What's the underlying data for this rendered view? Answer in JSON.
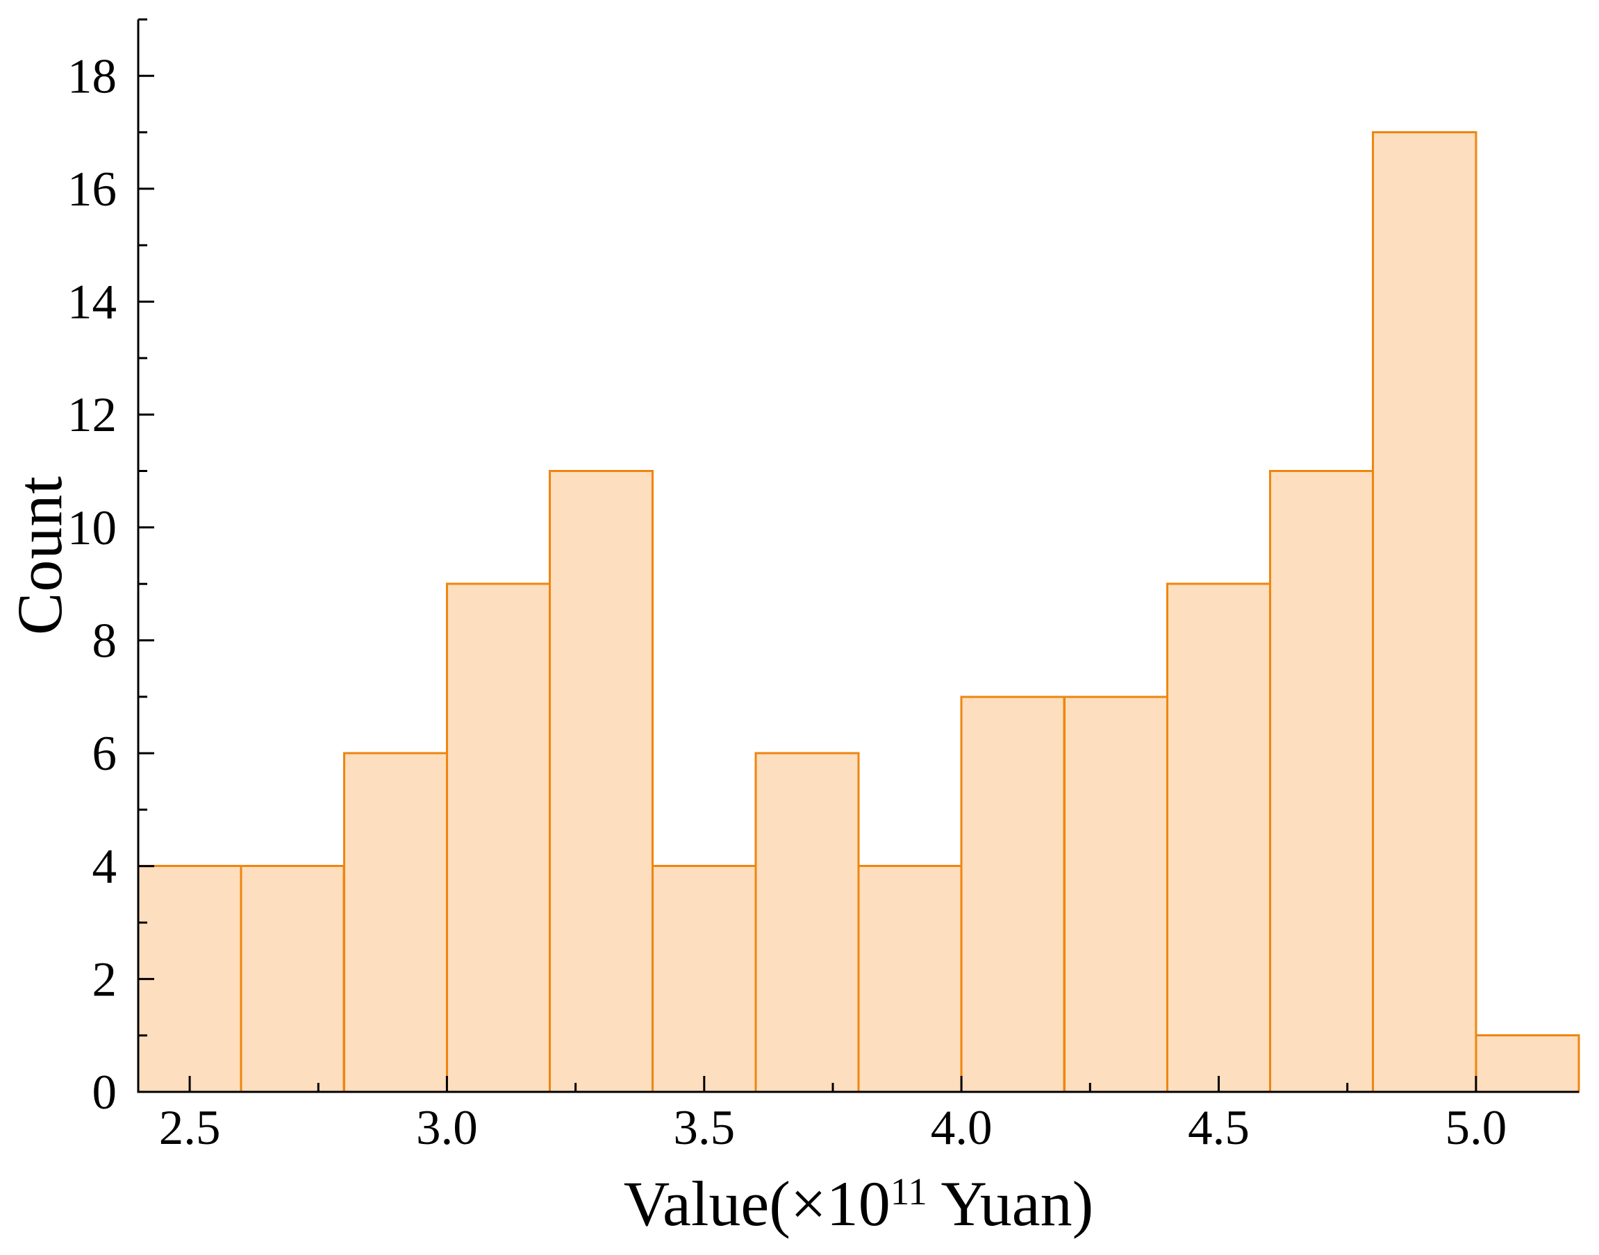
{
  "page": {
    "background": "#ffffff"
  },
  "chart_data": {
    "type": "bar",
    "subtype": "histogram",
    "title": "",
    "ylabel": "Count",
    "xlabel": {
      "prefix": "Value(×10",
      "superscript": "11",
      "suffix": " Yuan)"
    },
    "bin_edges": [
      2.4,
      2.6,
      2.8,
      3.0,
      3.2,
      3.4,
      3.6,
      3.8,
      4.0,
      4.2,
      4.4,
      4.6,
      4.8,
      5.0,
      5.2
    ],
    "counts": [
      4,
      4,
      6,
      9,
      11,
      4,
      6,
      4,
      7,
      7,
      9,
      11,
      17,
      1
    ],
    "xlim": [
      2.4,
      5.2
    ],
    "ylim": [
      0,
      19
    ],
    "x_major_ticks": [
      2.5,
      3.0,
      3.5,
      4.0,
      4.5,
      5.0
    ],
    "x_major_tick_labels": [
      "2.5",
      "3.0",
      "3.5",
      "4.0",
      "4.5",
      "5.0"
    ],
    "x_minor_ticks": [
      2.75,
      3.25,
      3.75,
      4.25,
      4.75
    ],
    "y_major_ticks": [
      0,
      2,
      4,
      6,
      8,
      10,
      12,
      14,
      16,
      18
    ],
    "y_major_tick_labels": [
      "0",
      "2",
      "4",
      "6",
      "8",
      "10",
      "12",
      "14",
      "16",
      "18"
    ],
    "y_minor_ticks": [
      1,
      3,
      5,
      7,
      9,
      11,
      13,
      15,
      17,
      19
    ],
    "grid": false,
    "legend": null,
    "colors": {
      "bar_fill": "#FDDEBE",
      "bar_stroke": "#EF850F",
      "axis": "#000000",
      "text": "#000000"
    }
  }
}
